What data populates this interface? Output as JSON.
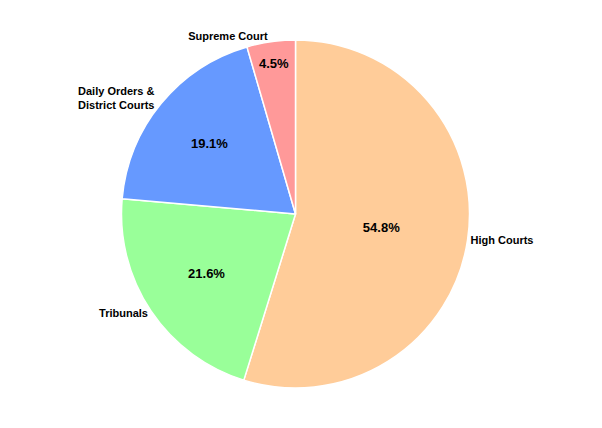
{
  "chart_data": {
    "type": "pie",
    "categories": [
      "High Courts",
      "Tribunals",
      "Daily Orders &\nDistrict Courts",
      "Supreme Court"
    ],
    "values": [
      54.8,
      21.6,
      19.1,
      4.5
    ],
    "value_labels": [
      "54.8%",
      "21.6%",
      "19.1%",
      "4.5%"
    ],
    "colors": [
      "#FFCC99",
      "#99FF99",
      "#6699FF",
      "#FF9999"
    ],
    "data_labels": true
  }
}
